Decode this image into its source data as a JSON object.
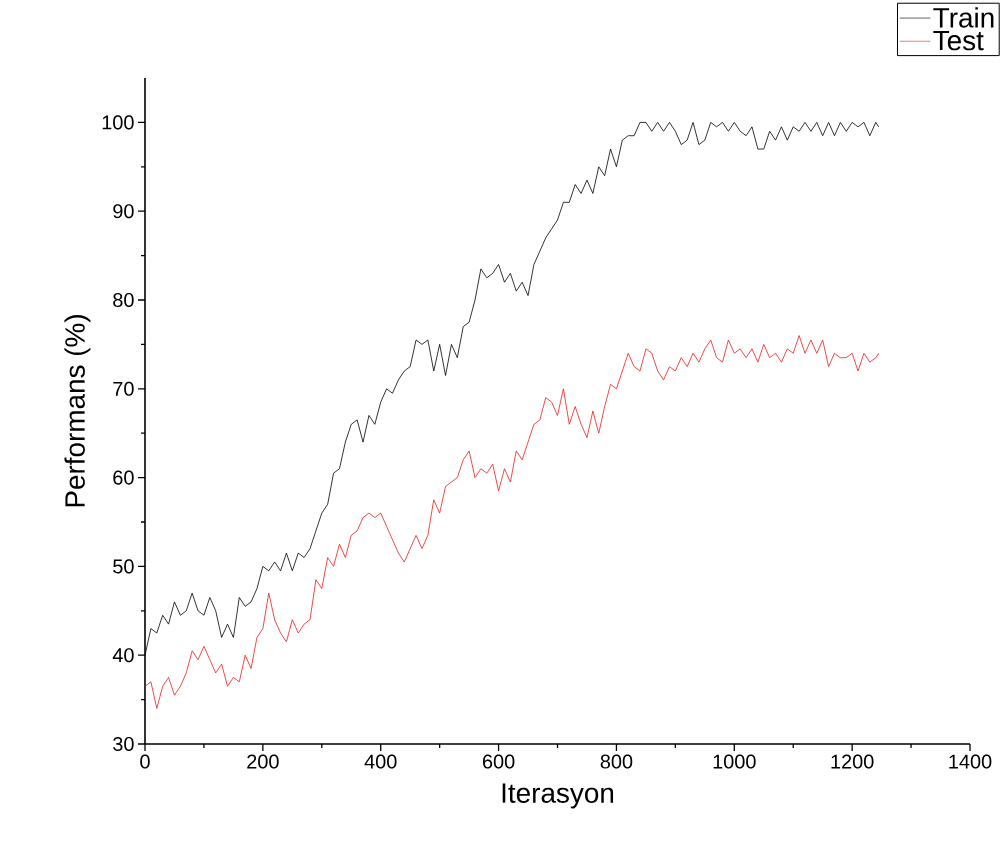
{
  "chart_data": {
    "type": "line",
    "xlabel": "Iterasyon",
    "ylabel": "Performans (%)",
    "xlim": [
      0,
      1400
    ],
    "ylim": [
      30,
      105
    ],
    "xticks": [
      0,
      200,
      400,
      600,
      800,
      1000,
      1200,
      1400
    ],
    "yticks": [
      30,
      40,
      50,
      60,
      70,
      80,
      90,
      100
    ],
    "grid": false,
    "legend": "top right",
    "marker": "none",
    "line_style": "solid",
    "x": [
      0,
      10,
      20,
      30,
      40,
      50,
      60,
      70,
      80,
      90,
      100,
      110,
      120,
      130,
      140,
      150,
      160,
      170,
      180,
      190,
      200,
      210,
      220,
      230,
      240,
      250,
      260,
      270,
      280,
      290,
      300,
      310,
      320,
      330,
      340,
      350,
      360,
      370,
      380,
      390,
      400,
      410,
      420,
      430,
      440,
      450,
      460,
      470,
      480,
      490,
      500,
      510,
      520,
      530,
      540,
      550,
      560,
      570,
      580,
      590,
      600,
      610,
      620,
      630,
      640,
      650,
      660,
      670,
      680,
      690,
      700,
      710,
      720,
      730,
      740,
      750,
      760,
      770,
      780,
      790,
      800,
      810,
      820,
      830,
      840,
      850,
      860,
      870,
      880,
      890,
      900,
      910,
      920,
      930,
      940,
      950,
      960,
      970,
      980,
      990,
      1000,
      1010,
      1020,
      1030,
      1040,
      1050,
      1060,
      1070,
      1080,
      1090,
      1100,
      1110,
      1120,
      1130,
      1140,
      1150,
      1160,
      1170,
      1180,
      1190,
      1200,
      1210,
      1220,
      1230,
      1240,
      1245
    ],
    "series": [
      {
        "name": "Train",
        "color": "#000000",
        "values": [
          40,
          43,
          42.5,
          44.5,
          43.5,
          46,
          44.5,
          45,
          47,
          45,
          44.5,
          46.5,
          45,
          42,
          43.5,
          42,
          46.5,
          45.5,
          46,
          47.5,
          50,
          49.5,
          50.5,
          49.5,
          51.5,
          49.5,
          51.5,
          51,
          52,
          54,
          56,
          57,
          60.5,
          61,
          64,
          66,
          66.5,
          64,
          67,
          66,
          68.5,
          70,
          69.5,
          71,
          72,
          72.5,
          75.5,
          75,
          75.5,
          72,
          75,
          71.5,
          75,
          73.5,
          77,
          77.5,
          80,
          83.5,
          82.5,
          83,
          84,
          82,
          83,
          81,
          82,
          80.5,
          84,
          85.5,
          87,
          88,
          89,
          91,
          91,
          93,
          92,
          93.5,
          92,
          95,
          94,
          97,
          95,
          98,
          98.5,
          98.5,
          100,
          100,
          99,
          100,
          99,
          100,
          99,
          97.5,
          98,
          100,
          97.5,
          98,
          100,
          99.5,
          100,
          99,
          100,
          99,
          98.5,
          99.5,
          97,
          97,
          99,
          98,
          99.5,
          98,
          99.5,
          99,
          100,
          99,
          100,
          98.5,
          100,
          98.5,
          100,
          99,
          100,
          99.5,
          100,
          98.5,
          100,
          99.5
        ]
      },
      {
        "name": "Test",
        "color": "#e8201c",
        "values": [
          36.5,
          37,
          34,
          36.5,
          37.5,
          35.5,
          36.5,
          38,
          40.5,
          39.5,
          41,
          39.5,
          38,
          39,
          36.5,
          37.5,
          37,
          40,
          38.5,
          42,
          43,
          47,
          44,
          42.5,
          41.5,
          44,
          42.5,
          43.5,
          44,
          48.5,
          47.5,
          51,
          50,
          52.5,
          51,
          53.5,
          54,
          55.5,
          56,
          55.5,
          56,
          54.5,
          53,
          51.5,
          50.5,
          52,
          53.5,
          52,
          53.5,
          57.5,
          56,
          59,
          59.5,
          60,
          62,
          63,
          60,
          61,
          60.5,
          61.5,
          58.5,
          61,
          59.5,
          63,
          62,
          64,
          66,
          66.5,
          69,
          68.5,
          67,
          70,
          66,
          68,
          66,
          64.5,
          67.5,
          65,
          68,
          70.5,
          70,
          72,
          74,
          72.5,
          72,
          74.5,
          74,
          72,
          71,
          72.5,
          72,
          73.5,
          72.5,
          74,
          73,
          74.5,
          75.5,
          73.5,
          73,
          75.5,
          74,
          74.5,
          73.5,
          74.5,
          73,
          75,
          73.5,
          74,
          73,
          74.5,
          74,
          76,
          74,
          75.5,
          74,
          75.5,
          72.5,
          74,
          73.5,
          73.5,
          74,
          72,
          74,
          73,
          73.5,
          74
        ]
      }
    ]
  }
}
